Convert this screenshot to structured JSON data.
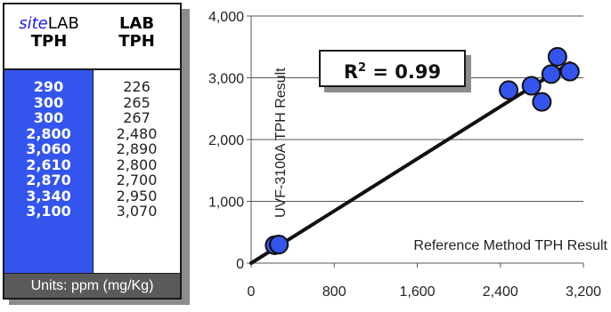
{
  "table": {
    "col1_header": {
      "line1_italic": "site",
      "line1_rest": "LAB",
      "line2": "TPH"
    },
    "col2_header": {
      "line1": "LAB",
      "line2": "TPH"
    },
    "sitelab_values": [
      "290",
      "300",
      "300",
      "2,800",
      "3,060",
      "2,610",
      "2,870",
      "3,340",
      "3,100"
    ],
    "lab_values": [
      "226",
      "265",
      "267",
      "2,480",
      "2,890",
      "2,800",
      "2,700",
      "2,950",
      "3,070"
    ],
    "units": "Units: ppm (mg/Kg)"
  },
  "r2_label": {
    "prefix": "R",
    "sup": "2",
    "suffix": " = 0.99"
  },
  "chart_data": {
    "type": "scatter",
    "xlabel": "Reference Method TPH Result",
    "ylabel": "UVF-3100A TPH Result",
    "xlim": [
      0,
      3200
    ],
    "ylim": [
      0,
      4000
    ],
    "x_ticks": [
      "0",
      "800",
      "1,600",
      "2,400",
      "3,200"
    ],
    "y_ticks": [
      "0",
      "1,000",
      "2,000",
      "3,000",
      "4,000"
    ],
    "grid": "horizontal",
    "points": [
      {
        "x": 226,
        "y": 290
      },
      {
        "x": 265,
        "y": 300
      },
      {
        "x": 267,
        "y": 300
      },
      {
        "x": 2480,
        "y": 2800
      },
      {
        "x": 2890,
        "y": 3060
      },
      {
        "x": 2800,
        "y": 2610
      },
      {
        "x": 2700,
        "y": 2870
      },
      {
        "x": 2950,
        "y": 3340
      },
      {
        "x": 3070,
        "y": 3100
      }
    ],
    "trendline": {
      "x": [
        0,
        3070
      ],
      "y": [
        0,
        3240
      ]
    },
    "colors": {
      "marker_fill": "#3355ee",
      "marker_edge": "#111111",
      "line": "#111111"
    }
  }
}
